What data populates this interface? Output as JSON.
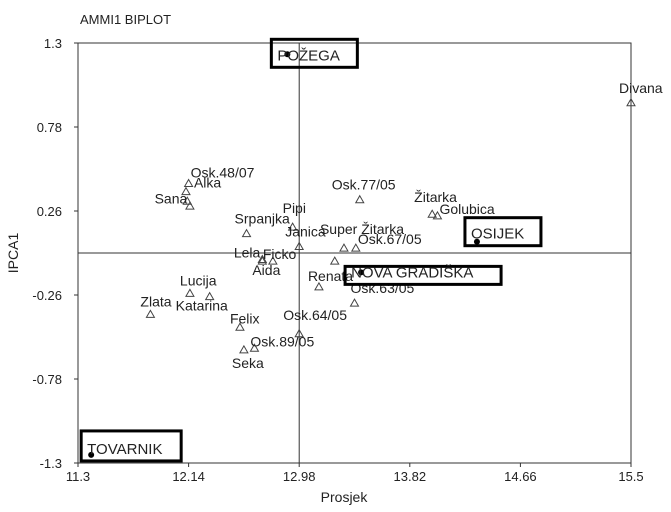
{
  "chart_data": {
    "type": "scatter",
    "title": "AMMI1 BIPLOT",
    "xlabel": "Prosjek",
    "ylabel": "IPCA1",
    "xlim": [
      11.3,
      15.5
    ],
    "ylim": [
      -1.3,
      1.3
    ],
    "x_ticks": [
      "11.3",
      "12.14",
      "12.98",
      "13.82",
      "14.66",
      "15.5"
    ],
    "y_ticks": [
      "1.3",
      "0.78",
      "0.26",
      "-0.26",
      "-0.78",
      "-1.3"
    ],
    "reference_lines": {
      "x": 12.98,
      "y": 0.0
    },
    "grid": false,
    "genotypes": [
      {
        "label": "Osk.48/07",
        "x": 12.14,
        "y": 0.43
      },
      {
        "label": "Alka",
        "x": 12.12,
        "y": 0.38
      },
      {
        "label": "Sana",
        "x": 12.13,
        "y": 0.32
      },
      {
        "label": "",
        "x": 12.15,
        "y": 0.29
      },
      {
        "label": "Pipi",
        "x": 12.93,
        "y": 0.16
      },
      {
        "label": "Srpanjka",
        "x": 12.58,
        "y": 0.12
      },
      {
        "label": "Janica",
        "x": 12.98,
        "y": 0.04
      },
      {
        "label": "Lela",
        "x": 12.7,
        "y": -0.04
      },
      {
        "label": "Ficko",
        "x": 12.78,
        "y": -0.05
      },
      {
        "label": "Aida",
        "x": 12.7,
        "y": -0.05
      },
      {
        "label": "",
        "x": 13.25,
        "y": -0.05
      },
      {
        "label": "Renata",
        "x": 13.13,
        "y": -0.21
      },
      {
        "label": "Osk.63/05",
        "x": 13.4,
        "y": -0.31
      },
      {
        "label": "Super Žitarka",
        "x": 13.32,
        "y": 0.03
      },
      {
        "label": "Osk.67/05",
        "x": 13.41,
        "y": 0.03
      },
      {
        "label": "Osk.77/05",
        "x": 13.44,
        "y": 0.33
      },
      {
        "label": "Žitarka",
        "x": 13.99,
        "y": 0.24
      },
      {
        "label": "Golubica",
        "x": 14.03,
        "y": 0.23
      },
      {
        "label": "Lucija",
        "x": 12.15,
        "y": -0.25
      },
      {
        "label": "Zlata",
        "x": 11.85,
        "y": -0.38
      },
      {
        "label": "Katarina",
        "x": 12.3,
        "y": -0.27
      },
      {
        "label": "Felix",
        "x": 12.53,
        "y": -0.46
      },
      {
        "label": "Osk.64/05",
        "x": 12.98,
        "y": -0.5
      },
      {
        "label": "Osk.89/05",
        "x": 12.64,
        "y": -0.59
      },
      {
        "label": "Seka",
        "x": 12.56,
        "y": -0.6
      },
      {
        "label": "Divana",
        "x": 15.5,
        "y": 0.93
      }
    ],
    "environments": [
      {
        "label": "POŽEGA",
        "x": 12.89,
        "y": 1.23
      },
      {
        "label": "OSIJEK",
        "x": 14.33,
        "y": 0.07
      },
      {
        "label": "NOVA GRADIŠKA",
        "x": 13.45,
        "y": -0.12
      },
      {
        "label": "TOVARNIK",
        "x": 11.4,
        "y": -1.25
      }
    ]
  }
}
